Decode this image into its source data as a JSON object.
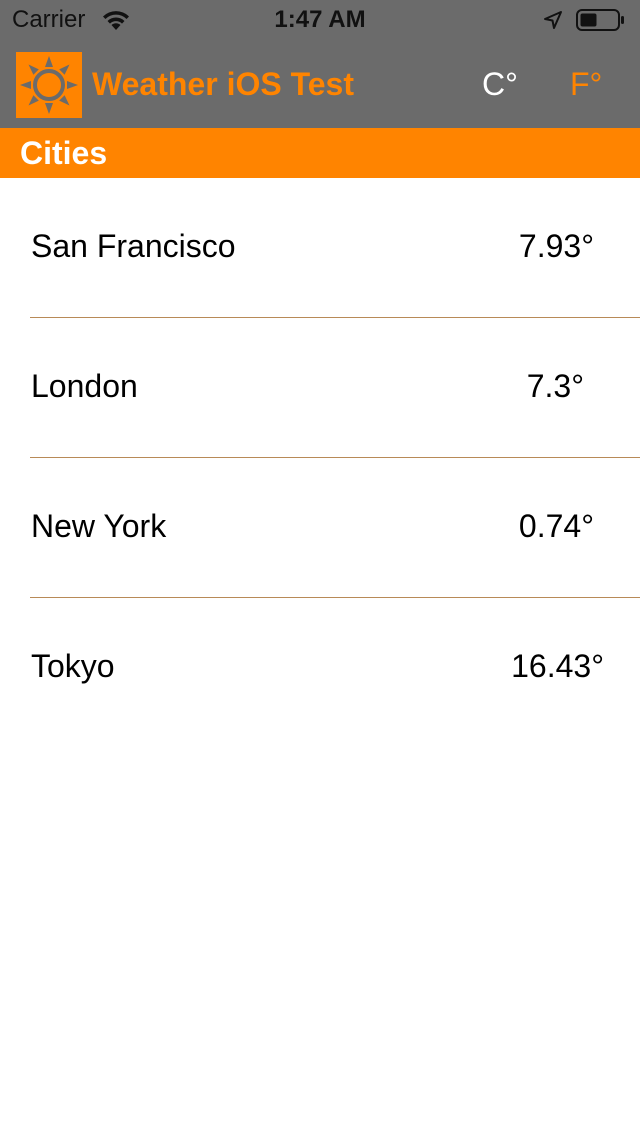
{
  "status_bar": {
    "carrier": "Carrier",
    "time": "1:47 AM",
    "icons": [
      "wifi-icon",
      "location-arrow-icon",
      "battery-icon"
    ]
  },
  "nav_bar": {
    "title": "Weather iOS Test",
    "logo_icon": "sun-icon",
    "unit_celsius": "C°",
    "unit_fahrenheit": "F°"
  },
  "section": {
    "title": "Cities"
  },
  "cities": [
    {
      "name": "San Francisco",
      "temp": "7.93°"
    },
    {
      "name": "London",
      "temp": "7.3°"
    },
    {
      "name": "New York",
      "temp": "0.74°"
    },
    {
      "name": "Tokyo",
      "temp": "16.43°"
    }
  ],
  "colors": {
    "accent": "#ff8400",
    "bar_background": "#6b6b6b",
    "divider": "#b88a57"
  }
}
